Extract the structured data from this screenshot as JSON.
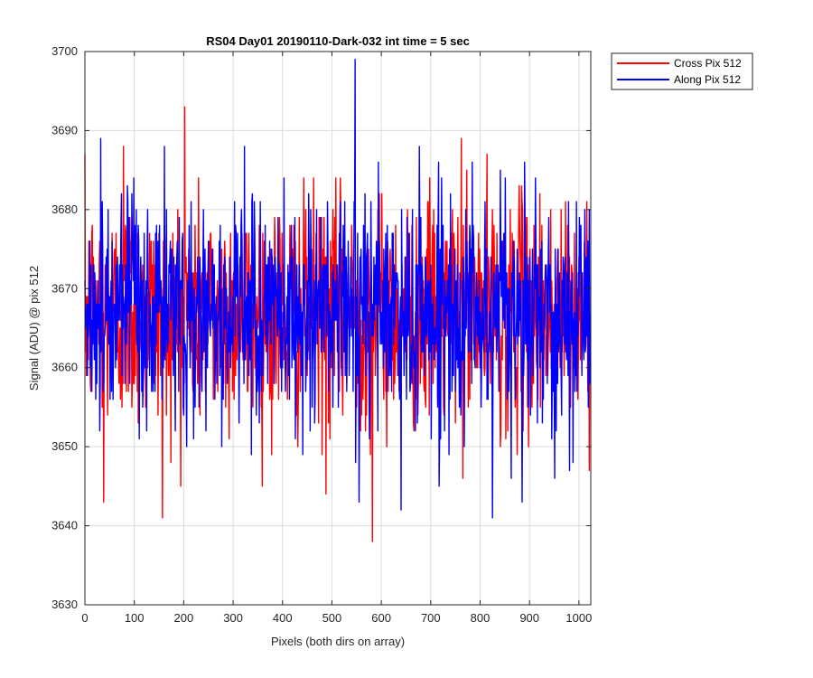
{
  "chart_data": {
    "type": "line",
    "title": "RS04 Day01 20190110-Dark-032 int time = 5 sec",
    "xlabel": "Pixels (both dirs on array)",
    "ylabel": "Signal (ADU) @ pix 512",
    "xlim": [
      0,
      1024
    ],
    "ylim": [
      3630,
      3700
    ],
    "xticks": [
      0,
      100,
      200,
      300,
      400,
      500,
      600,
      700,
      800,
      900,
      1000
    ],
    "yticks": [
      3630,
      3640,
      3650,
      3660,
      3670,
      3680,
      3690,
      3700
    ],
    "grid": true,
    "legend_position": "outside-top-right",
    "num_points": 1024,
    "series": [
      {
        "name": "Cross Pix 512",
        "color": "#ff0000",
        "values_summary": "noise around 3667 ADU, typical range 3650-3685",
        "notable_points": [
          {
            "x": 38,
            "y": 3643
          },
          {
            "x": 78,
            "y": 3688
          },
          {
            "x": 157,
            "y": 3641
          },
          {
            "x": 202,
            "y": 3693
          },
          {
            "x": 488,
            "y": 3644
          },
          {
            "x": 582,
            "y": 3638
          },
          {
            "x": 762,
            "y": 3689
          }
        ]
      },
      {
        "name": "Along Pix 512",
        "color": "#0000ff",
        "values_summary": "noise around 3667 ADU, typical range 3650-3685",
        "notable_points": [
          {
            "x": 32,
            "y": 3689
          },
          {
            "x": 547,
            "y": 3699
          },
          {
            "x": 555,
            "y": 3643
          },
          {
            "x": 640,
            "y": 3642
          },
          {
            "x": 825,
            "y": 3641
          },
          {
            "x": 885,
            "y": 3643
          }
        ]
      }
    ]
  }
}
